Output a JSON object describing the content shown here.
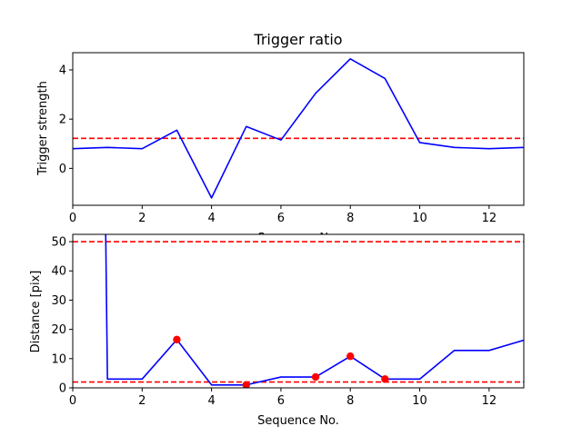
{
  "chart_data": [
    {
      "type": "line",
      "title": "Trigger ratio",
      "xlabel": "Sequence No.",
      "ylabel": "Trigger strength",
      "xlim": [
        0,
        13
      ],
      "ylim": [
        -1.5,
        4.7
      ],
      "xticks": [
        0,
        2,
        4,
        6,
        8,
        10,
        12
      ],
      "yticks": [
        0,
        2,
        4
      ],
      "x": [
        0,
        1,
        2,
        3,
        4,
        5,
        6,
        7,
        8,
        9,
        10,
        11,
        12,
        13
      ],
      "series": [
        {
          "values": [
            0.8,
            0.85,
            0.8,
            1.55,
            -1.2,
            1.7,
            1.15,
            3.05,
            4.45,
            3.65,
            1.05,
            0.85,
            0.8,
            0.85
          ],
          "color": "#0000ff"
        }
      ],
      "hlines": [
        {
          "y": 1.22,
          "color": "#ff0000",
          "style": "dashed"
        }
      ],
      "markers": [],
      "grid": false
    },
    {
      "type": "line",
      "title": "",
      "xlabel": "Sequence No.",
      "ylabel": "Distance [pix]",
      "xlim": [
        0,
        13
      ],
      "ylim": [
        0,
        52.5
      ],
      "xticks": [
        0,
        2,
        4,
        6,
        8,
        10,
        12
      ],
      "yticks": [
        0,
        10,
        20,
        30,
        40,
        50
      ],
      "x": [
        0.95,
        1,
        2,
        3,
        4,
        5,
        6,
        7,
        8,
        9,
        10,
        11,
        12,
        13
      ],
      "series": [
        {
          "values": [
            52.5,
            3,
            3,
            16.5,
            1,
            1,
            3.7,
            3.7,
            10.8,
            3,
            3,
            12.8,
            12.8,
            16.3
          ],
          "color": "#0000ff"
        }
      ],
      "hlines": [
        {
          "y": 50,
          "color": "#ff0000",
          "style": "dashed"
        },
        {
          "y": 2,
          "color": "#ff0000",
          "style": "dashed"
        }
      ],
      "markers": [
        {
          "x": 3,
          "y": 16.5
        },
        {
          "x": 5,
          "y": 1
        },
        {
          "x": 7,
          "y": 3.7
        },
        {
          "x": 8,
          "y": 10.8
        },
        {
          "x": 9,
          "y": 3
        }
      ],
      "marker_color": "#ff0000",
      "grid": false
    }
  ]
}
